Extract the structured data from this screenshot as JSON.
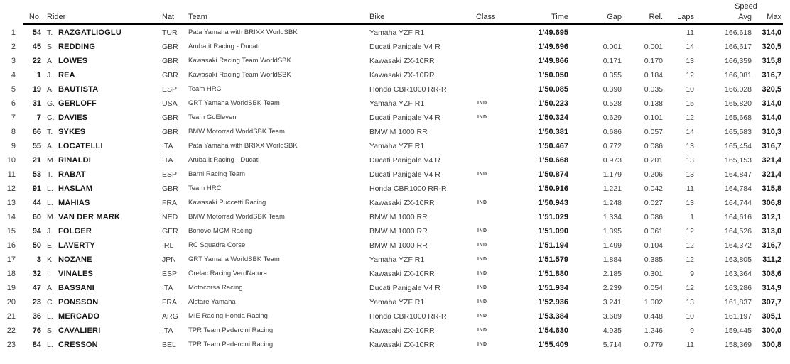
{
  "header": {
    "speed_group": "Speed",
    "columns": {
      "no": "No.",
      "rider": "Rider",
      "nat": "Nat",
      "team": "Team",
      "bike": "Bike",
      "cls": "Class",
      "time": "Time",
      "gap": "Gap",
      "rel": "Rel.",
      "laps": "Laps",
      "avg": "Avg",
      "max": "Max"
    }
  },
  "rows": [
    {
      "pos": "1",
      "no": "54",
      "initial": "T.",
      "name": "RAZGATLIOGLU",
      "nat": "TUR",
      "team": "Pata Yamaha with BRIXX WorldSBK",
      "bike": "Yamaha YZF R1",
      "cls": "",
      "time": "1'49.695",
      "gap": "",
      "rel": "",
      "laps": "11",
      "avg": "166,618",
      "max": "314,0"
    },
    {
      "pos": "2",
      "no": "45",
      "initial": "S.",
      "name": "REDDING",
      "nat": "GBR",
      "team": "Aruba.it Racing - Ducati",
      "bike": "Ducati Panigale V4 R",
      "cls": "",
      "time": "1'49.696",
      "gap": "0.001",
      "rel": "0.001",
      "laps": "14",
      "avg": "166,617",
      "max": "320,5"
    },
    {
      "pos": "3",
      "no": "22",
      "initial": "A.",
      "name": "LOWES",
      "nat": "GBR",
      "team": "Kawasaki Racing Team WorldSBK",
      "bike": "Kawasaki ZX-10RR",
      "cls": "",
      "time": "1'49.866",
      "gap": "0.171",
      "rel": "0.170",
      "laps": "13",
      "avg": "166,359",
      "max": "315,8"
    },
    {
      "pos": "4",
      "no": "1",
      "initial": "J.",
      "name": "REA",
      "nat": "GBR",
      "team": "Kawasaki Racing Team WorldSBK",
      "bike": "Kawasaki ZX-10RR",
      "cls": "",
      "time": "1'50.050",
      "gap": "0.355",
      "rel": "0.184",
      "laps": "12",
      "avg": "166,081",
      "max": "316,7"
    },
    {
      "pos": "5",
      "no": "19",
      "initial": "A.",
      "name": "BAUTISTA",
      "nat": "ESP",
      "team": "Team HRC",
      "bike": "Honda CBR1000 RR-R",
      "cls": "",
      "time": "1'50.085",
      "gap": "0.390",
      "rel": "0.035",
      "laps": "10",
      "avg": "166,028",
      "max": "320,5"
    },
    {
      "pos": "6",
      "no": "31",
      "initial": "G.",
      "name": "GERLOFF",
      "nat": "USA",
      "team": "GRT Yamaha WorldSBK Team",
      "bike": "Yamaha YZF R1",
      "cls": "IND",
      "time": "1'50.223",
      "gap": "0.528",
      "rel": "0.138",
      "laps": "15",
      "avg": "165,820",
      "max": "314,0"
    },
    {
      "pos": "7",
      "no": "7",
      "initial": "C.",
      "name": "DAVIES",
      "nat": "GBR",
      "team": "Team GoEleven",
      "bike": "Ducati Panigale V4 R",
      "cls": "IND",
      "time": "1'50.324",
      "gap": "0.629",
      "rel": "0.101",
      "laps": "12",
      "avg": "165,668",
      "max": "314,0"
    },
    {
      "pos": "8",
      "no": "66",
      "initial": "T.",
      "name": "SYKES",
      "nat": "GBR",
      "team": "BMW Motorrad WorldSBK Team",
      "bike": "BMW M 1000 RR",
      "cls": "",
      "time": "1'50.381",
      "gap": "0.686",
      "rel": "0.057",
      "laps": "14",
      "avg": "165,583",
      "max": "310,3"
    },
    {
      "pos": "9",
      "no": "55",
      "initial": "A.",
      "name": "LOCATELLI",
      "nat": "ITA",
      "team": "Pata Yamaha with BRIXX WorldSBK",
      "bike": "Yamaha YZF R1",
      "cls": "",
      "time": "1'50.467",
      "gap": "0.772",
      "rel": "0.086",
      "laps": "13",
      "avg": "165,454",
      "max": "316,7"
    },
    {
      "pos": "10",
      "no": "21",
      "initial": "M.",
      "name": "RINALDI",
      "nat": "ITA",
      "team": "Aruba.it Racing - Ducati",
      "bike": "Ducati Panigale V4 R",
      "cls": "",
      "time": "1'50.668",
      "gap": "0.973",
      "rel": "0.201",
      "laps": "13",
      "avg": "165,153",
      "max": "321,4"
    },
    {
      "pos": "11",
      "no": "53",
      "initial": "T.",
      "name": "RABAT",
      "nat": "ESP",
      "team": "Barni Racing Team",
      "bike": "Ducati Panigale V4 R",
      "cls": "IND",
      "time": "1'50.874",
      "gap": "1.179",
      "rel": "0.206",
      "laps": "13",
      "avg": "164,847",
      "max": "321,4"
    },
    {
      "pos": "12",
      "no": "91",
      "initial": "L.",
      "name": "HASLAM",
      "nat": "GBR",
      "team": "Team HRC",
      "bike": "Honda CBR1000 RR-R",
      "cls": "",
      "time": "1'50.916",
      "gap": "1.221",
      "rel": "0.042",
      "laps": "11",
      "avg": "164,784",
      "max": "315,8"
    },
    {
      "pos": "13",
      "no": "44",
      "initial": "L.",
      "name": "MAHIAS",
      "nat": "FRA",
      "team": "Kawasaki Puccetti Racing",
      "bike": "Kawasaki ZX-10RR",
      "cls": "IND",
      "time": "1'50.943",
      "gap": "1.248",
      "rel": "0.027",
      "laps": "13",
      "avg": "164,744",
      "max": "306,8"
    },
    {
      "pos": "14",
      "no": "60",
      "initial": "M.",
      "name": "VAN DER MARK",
      "nat": "NED",
      "team": "BMW Motorrad WorldSBK Team",
      "bike": "BMW M 1000 RR",
      "cls": "",
      "time": "1'51.029",
      "gap": "1.334",
      "rel": "0.086",
      "laps": "1",
      "avg": "164,616",
      "max": "312,1"
    },
    {
      "pos": "15",
      "no": "94",
      "initial": "J.",
      "name": "FOLGER",
      "nat": "GER",
      "team": "Bonovo MGM Racing",
      "bike": "BMW M 1000 RR",
      "cls": "IND",
      "time": "1'51.090",
      "gap": "1.395",
      "rel": "0.061",
      "laps": "12",
      "avg": "164,526",
      "max": "313,0"
    },
    {
      "pos": "16",
      "no": "50",
      "initial": "E.",
      "name": "LAVERTY",
      "nat": "IRL",
      "team": "RC Squadra Corse",
      "bike": "BMW M 1000 RR",
      "cls": "IND",
      "time": "1'51.194",
      "gap": "1.499",
      "rel": "0.104",
      "laps": "12",
      "avg": "164,372",
      "max": "316,7"
    },
    {
      "pos": "17",
      "no": "3",
      "initial": "K.",
      "name": "NOZANE",
      "nat": "JPN",
      "team": "GRT Yamaha WorldSBK Team",
      "bike": "Yamaha YZF R1",
      "cls": "IND",
      "time": "1'51.579",
      "gap": "1.884",
      "rel": "0.385",
      "laps": "12",
      "avg": "163,805",
      "max": "311,2"
    },
    {
      "pos": "18",
      "no": "32",
      "initial": "I.",
      "name": "VINALES",
      "nat": "ESP",
      "team": "Orelac Racing VerdNatura",
      "bike": "Kawasaki ZX-10RR",
      "cls": "IND",
      "time": "1'51.880",
      "gap": "2.185",
      "rel": "0.301",
      "laps": "9",
      "avg": "163,364",
      "max": "308,6"
    },
    {
      "pos": "19",
      "no": "47",
      "initial": "A.",
      "name": "BASSANI",
      "nat": "ITA",
      "team": "Motocorsa Racing",
      "bike": "Ducati Panigale V4 R",
      "cls": "IND",
      "time": "1'51.934",
      "gap": "2.239",
      "rel": "0.054",
      "laps": "12",
      "avg": "163,286",
      "max": "314,9"
    },
    {
      "pos": "20",
      "no": "23",
      "initial": "C.",
      "name": "PONSSON",
      "nat": "FRA",
      "team": "Alstare Yamaha",
      "bike": "Yamaha YZF R1",
      "cls": "IND",
      "time": "1'52.936",
      "gap": "3.241",
      "rel": "1.002",
      "laps": "13",
      "avg": "161,837",
      "max": "307,7"
    },
    {
      "pos": "21",
      "no": "36",
      "initial": "L.",
      "name": "MERCADO",
      "nat": "ARG",
      "team": "MIE Racing Honda Racing",
      "bike": "Honda CBR1000 RR-R",
      "cls": "IND",
      "time": "1'53.384",
      "gap": "3.689",
      "rel": "0.448",
      "laps": "10",
      "avg": "161,197",
      "max": "305,1"
    },
    {
      "pos": "22",
      "no": "76",
      "initial": "S.",
      "name": "CAVALIERI",
      "nat": "ITA",
      "team": "TPR Team Pedercini Racing",
      "bike": "Kawasaki ZX-10RR",
      "cls": "IND",
      "time": "1'54.630",
      "gap": "4.935",
      "rel": "1.246",
      "laps": "9",
      "avg": "159,445",
      "max": "300,0"
    },
    {
      "pos": "23",
      "no": "84",
      "initial": "L.",
      "name": "CRESSON",
      "nat": "BEL",
      "team": "TPR Team Pedercini Racing",
      "bike": "Kawasaki ZX-10RR",
      "cls": "IND",
      "time": "1'55.409",
      "gap": "5.714",
      "rel": "0.779",
      "laps": "11",
      "avg": "158,369",
      "max": "300,8"
    }
  ]
}
